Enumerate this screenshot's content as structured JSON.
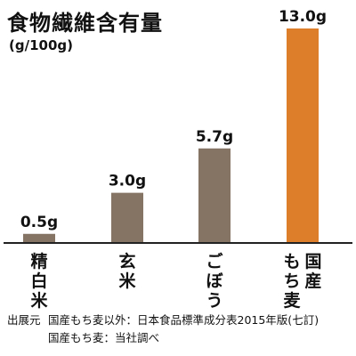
{
  "title": "食物繊維含有量",
  "subtitle": "(g/100g)",
  "source": {
    "label": "出展元",
    "line1": "国産もち麦以外：日本食品標準成分表2015年版(七訂)",
    "line2": "国産もち麦：当社調べ"
  },
  "colors": {
    "bar_default": "#857464",
    "bar_highlight": "#dd7e2b",
    "axis": "#222222"
  },
  "chart_data": {
    "type": "bar",
    "title": "食物繊維含有量",
    "ylabel": "(g/100g)",
    "categories": [
      "精白米",
      "玄米",
      "ごぼう",
      "国産もち麦"
    ],
    "category_lines": [
      [
        "精",
        "白",
        "米"
      ],
      [
        "玄",
        "米"
      ],
      [
        "ご",
        "ぼ",
        "う"
      ],
      [
        "もち麦",
        "国産"
      ]
    ],
    "values": [
      0.5,
      3.0,
      5.7,
      13.0
    ],
    "value_labels": [
      "0.5g",
      "3.0g",
      "5.7g",
      "13.0g"
    ],
    "highlight_index": 3,
    "ylim": [
      0,
      13.0
    ],
    "grid": false,
    "legend": "none"
  }
}
